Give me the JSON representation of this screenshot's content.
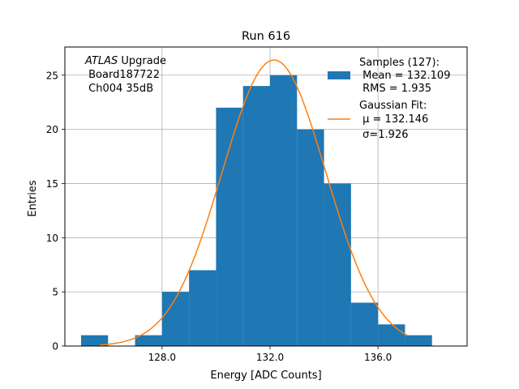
{
  "chart_data": {
    "type": "bar",
    "title": "Run 616",
    "xlabel": "Energy [ADC Counts]",
    "ylabel": "Entries",
    "xlim": [
      124.4,
      139.3
    ],
    "ylim": [
      0,
      27.6
    ],
    "grid": true,
    "x_ticks": [
      {
        "v": 128.0,
        "label": "128.0"
      },
      {
        "v": 132.0,
        "label": "132.0"
      },
      {
        "v": 136.0,
        "label": "136.0"
      }
    ],
    "y_ticks": [
      {
        "v": 0,
        "label": "0"
      },
      {
        "v": 5,
        "label": "5"
      },
      {
        "v": 10,
        "label": "10"
      },
      {
        "v": 15,
        "label": "15"
      },
      {
        "v": 20,
        "label": "20"
      },
      {
        "v": 25,
        "label": "25"
      }
    ],
    "histogram": {
      "bin_edges": [
        125,
        126,
        127,
        128,
        129,
        130,
        131,
        132,
        133,
        134,
        135,
        136,
        137,
        138
      ],
      "counts": [
        1,
        0,
        1,
        5,
        7,
        22,
        24,
        25,
        20,
        15,
        4,
        2,
        1
      ],
      "color": "#1f77b4"
    },
    "fit": {
      "function": "gaussian",
      "mu": 132.146,
      "sigma": 1.926,
      "amplitude": 26.4,
      "x_range": [
        125.7,
        137.1
      ],
      "color": "#ff7f0e"
    },
    "annotation_lines": [
      "ATLAS Upgrade",
      " Board187722",
      " Ch004 35dB"
    ],
    "legend": {
      "placement": "top-right",
      "samples": [
        "Samples (127):",
        " Mean = 132.109",
        " RMS = 1.935"
      ],
      "fit": [
        "Gaussian Fit:",
        " μ = 132.146",
        " σ=1.926"
      ]
    }
  }
}
